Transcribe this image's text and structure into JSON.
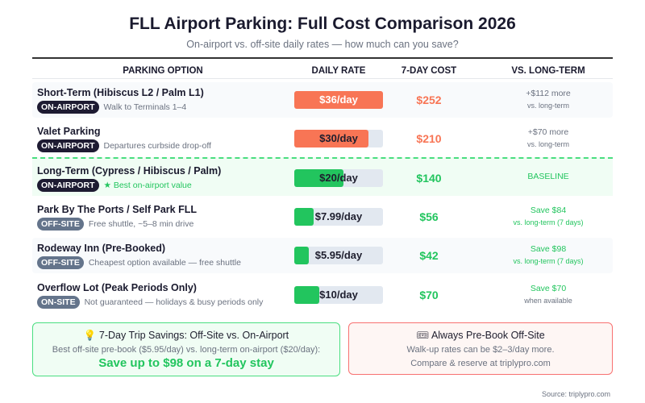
{
  "header": {
    "title": "FLL Airport Parking: Full Cost Comparison 2026",
    "subtitle": "On-airport vs. off-site daily rates — how much can you save?"
  },
  "columns": [
    "PARKING OPTION",
    "DAILY RATE",
    "7-DAY COST",
    "VS. LONG-TERM"
  ],
  "colors": {
    "expensive": "#f87555",
    "cheap": "#22c55e",
    "on_airport_badge": "#1e1b32",
    "off_site_badge": "#64748b"
  },
  "max_rate": 36,
  "rows": [
    {
      "badge": "ON-AIRPORT",
      "badge_type": "on",
      "name": "Short-Term (Hibiscus L2 / Palm L1)",
      "desc": "Walk to Terminals 1–4",
      "rate": 36,
      "rate_label": "$36/day",
      "cost": "$252",
      "vs": "+$112 more",
      "vs_sub": "vs. long-term",
      "tone": "expensive"
    },
    {
      "badge": "ON-AIRPORT",
      "badge_type": "on",
      "name": "Valet Parking",
      "desc": "Departures curbside drop-off",
      "rate": 30,
      "rate_label": "$30/day",
      "cost": "$210",
      "vs": "+$70 more",
      "vs_sub": "vs. long-term",
      "tone": "expensive"
    },
    {
      "badge": "ON-AIRPORT",
      "badge_type": "on",
      "name": "Long-Term (Cypress / Hibiscus / Palm)",
      "desc": "★ Best on-airport value",
      "rate": 20,
      "rate_label": "$20/day",
      "cost": "$140",
      "vs": "BASELINE",
      "vs_sub": "",
      "tone": "cheap",
      "baseline": true
    },
    {
      "badge": "OFF-SITE",
      "badge_type": "off",
      "name": "Park By The Ports / Self Park FLL",
      "desc": "Free shuttle, ~5–8 min drive",
      "rate": 7.99,
      "rate_label": "$7.99/day",
      "cost": "$56",
      "vs": "Save $84",
      "vs_sub": "vs. long-term (7 days)",
      "tone": "cheap"
    },
    {
      "badge": "OFF-SITE",
      "badge_type": "off",
      "name": "Rodeway Inn (Pre-Booked)",
      "desc": "Cheapest option available — free shuttle",
      "rate": 5.95,
      "rate_label": "$5.95/day",
      "cost": "$42",
      "vs": "Save $98",
      "vs_sub": "vs. long-term (7 days)",
      "tone": "cheap"
    },
    {
      "badge": "ON-SITE",
      "badge_type": "off",
      "name": "Overflow Lot (Peak Periods Only)",
      "desc": "Not guaranteed — holidays & busy periods only",
      "rate": 10,
      "rate_label": "$10/day",
      "cost": "$70",
      "vs": "Save $70",
      "vs_sub": "when available",
      "tone": "cheap"
    }
  ],
  "savings_box": {
    "icon": "lightbulb-icon",
    "title": "7-Day Trip Savings: Off-Site vs. On-Airport",
    "line": "Best off-site pre-book ($5.95/day) vs. long-term on-airport ($20/day):",
    "highlight": "Save up to $98 on a 7-day stay"
  },
  "prebook_box": {
    "icon": "ticket-icon",
    "title": "Always Pre-Book Off-Site",
    "line1": "Walk-up rates can be $2–3/day more.",
    "line2": "Compare & reserve at triplypro.com"
  },
  "source": "Source: triplypro.com"
}
